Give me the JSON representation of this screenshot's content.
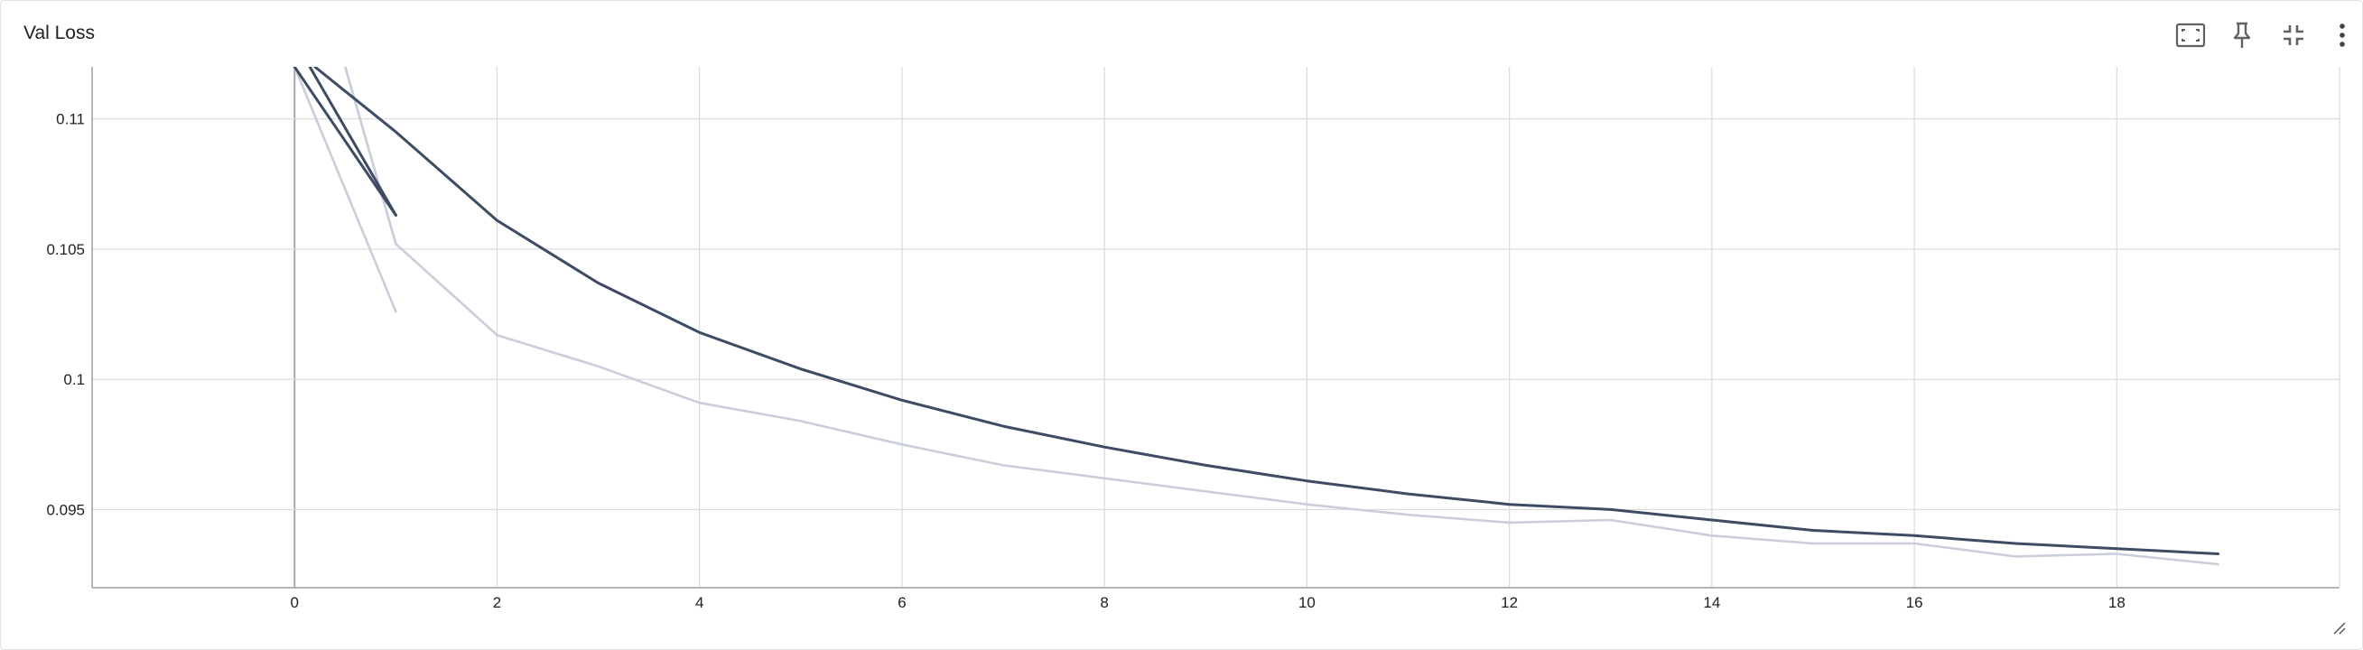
{
  "card": {
    "title": "Val Loss",
    "toolbar": [
      {
        "name": "fit-domain-button",
        "icon": "fit-screen-icon"
      },
      {
        "name": "pin-button",
        "icon": "pin-icon"
      },
      {
        "name": "collapse-button",
        "icon": "collapse-icon"
      },
      {
        "name": "more-options-button",
        "icon": "more-vert-icon"
      }
    ]
  },
  "chart_data": {
    "type": "line",
    "title": "Val Loss",
    "xlabel": "",
    "ylabel": "",
    "xlim": [
      -2,
      20.2
    ],
    "ylim": [
      0.092,
      0.112
    ],
    "x_ticks": [
      0,
      2,
      4,
      6,
      8,
      10,
      12,
      14,
      16,
      18
    ],
    "y_ticks": [
      0.095,
      0.1,
      0.105,
      0.11
    ],
    "y_tick_labels": [
      "0.095",
      "0.1",
      "0.105",
      "0.11"
    ],
    "grid": true,
    "colors": {
      "dark": "#3d4b63",
      "light": "#c9cedb"
    },
    "series": [
      {
        "color": "dark",
        "x": [
          0,
          1
        ],
        "y": [
          0.112,
          0.1063
        ]
      },
      {
        "color": "dark",
        "x": [
          0.15,
          1
        ],
        "y": [
          0.112,
          0.1063
        ]
      },
      {
        "color": "light",
        "x": [
          0,
          1
        ],
        "y": [
          0.112,
          0.1026
        ]
      },
      {
        "color": "light",
        "x": [
          0.5,
          1
        ],
        "y": [
          0.112,
          0.1052
        ]
      },
      {
        "color": "dark",
        "x": [
          0.2,
          1,
          2,
          3,
          4,
          5,
          6,
          7,
          8,
          9,
          10,
          11,
          12,
          13,
          14,
          15,
          16,
          17,
          18,
          19
        ],
        "y": [
          0.112,
          0.1095,
          0.1061,
          0.1037,
          0.1018,
          0.1004,
          0.0992,
          0.0982,
          0.0974,
          0.0967,
          0.0961,
          0.0956,
          0.0952,
          0.095,
          0.0946,
          0.0942,
          0.094,
          0.0937,
          0.0935,
          0.0933
        ]
      },
      {
        "color": "light",
        "x": [
          0.5,
          1,
          2,
          3,
          4,
          5,
          6,
          7,
          8,
          9,
          10,
          11,
          12,
          13,
          14,
          15,
          16,
          17,
          18,
          19
        ],
        "y": [
          0.112,
          0.1052,
          0.1017,
          0.1005,
          0.0991,
          0.0984,
          0.0975,
          0.0967,
          0.0962,
          0.0957,
          0.0952,
          0.0948,
          0.0945,
          0.0946,
          0.094,
          0.0937,
          0.0937,
          0.0932,
          0.0933,
          0.0929
        ]
      }
    ]
  }
}
